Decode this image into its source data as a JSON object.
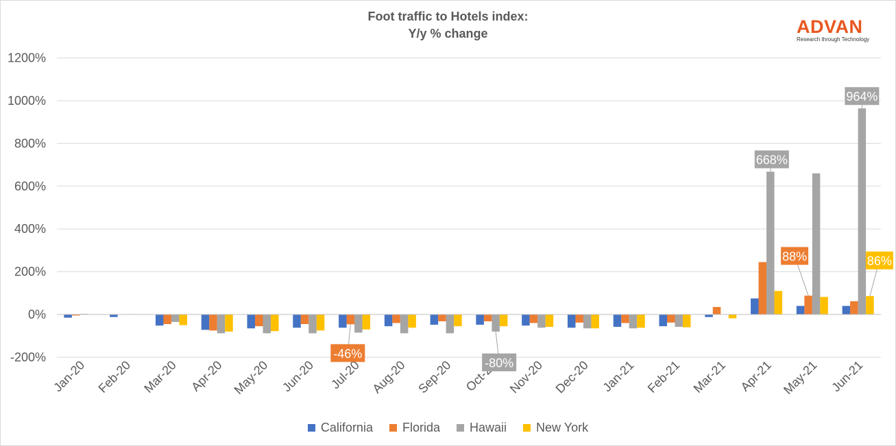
{
  "chart_data": {
    "type": "bar",
    "title_lines": [
      "Foot traffic to Hotels index:",
      "Y/y % change"
    ],
    "categories": [
      "Jan-20",
      "Feb-20",
      "Mar-20",
      "Apr-20",
      "May-20",
      "Jun-20",
      "Jul-20",
      "Aug-20",
      "Sep-20",
      "Oct-20",
      "Nov-20",
      "Dec-20",
      "Jan-21",
      "Feb-21",
      "Mar-21",
      "Apr-21",
      "May-21",
      "Jun-21"
    ],
    "series": [
      {
        "name": "California",
        "color": "#4472c4",
        "values": [
          -15,
          -12,
          -52,
          -72,
          -65,
          -62,
          -62,
          -55,
          -48,
          -48,
          -52,
          -62,
          -58,
          -55,
          -12,
          75,
          40,
          40
        ]
      },
      {
        "name": "Florida",
        "color": "#ed7d31",
        "values": [
          -5,
          0,
          -45,
          -75,
          -55,
          -45,
          -46,
          -40,
          -32,
          -32,
          -40,
          -38,
          -40,
          -38,
          35,
          245,
          88,
          62
        ]
      },
      {
        "name": "Hawaii",
        "color": "#a5a5a5",
        "values": [
          3,
          2,
          -35,
          -88,
          -88,
          -88,
          -85,
          -88,
          -88,
          -80,
          -62,
          -65,
          -65,
          -58,
          0,
          668,
          660,
          964
        ]
      },
      {
        "name": "New York",
        "color": "#ffc000",
        "values": [
          0,
          0,
          -50,
          -80,
          -78,
          -75,
          -70,
          -62,
          -55,
          -55,
          -58,
          -65,
          -62,
          -60,
          -18,
          110,
          82,
          86
        ]
      }
    ],
    "ylim": [
      -200,
      1200
    ],
    "yticks": [
      -200,
      0,
      200,
      400,
      600,
      800,
      1000,
      1200
    ],
    "ytick_labels": [
      "-200%",
      "0%",
      "200%",
      "400%",
      "600%",
      "800%",
      "1000%",
      "1200%"
    ],
    "annotations": [
      {
        "category": "Jul-20",
        "series": "Florida",
        "text": "-46%"
      },
      {
        "category": "Oct-20",
        "series": "Hawaii",
        "text": "-80%"
      },
      {
        "category": "Apr-21",
        "series": "Hawaii",
        "text": "668%"
      },
      {
        "category": "May-21",
        "series": "Florida",
        "text": "88%"
      },
      {
        "category": "Jun-21",
        "series": "Hawaii",
        "text": "964%"
      },
      {
        "category": "Jun-21",
        "series": "New York",
        "text": "86%"
      }
    ],
    "grid": true,
    "legend_position": "bottom"
  },
  "brand": {
    "name": "ADVAN",
    "tagline": "Research through Technology",
    "color": "#e8571f"
  }
}
